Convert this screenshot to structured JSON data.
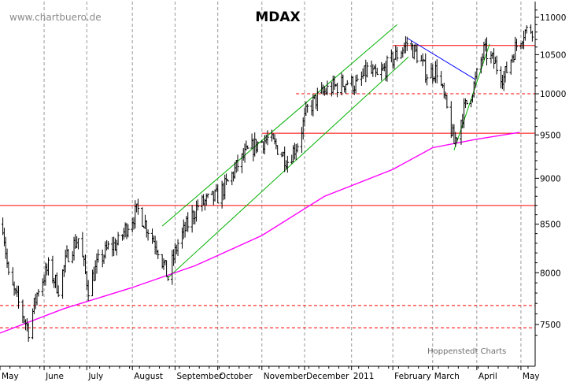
{
  "chart_data": {
    "type": "ohlc",
    "title": "MDAX",
    "watermark": "www.chartbuero.de",
    "source": "Hoppenstedt Charts",
    "y_scale": "log",
    "y_axis_side": "right",
    "ylim": [
      7350,
      11200
    ],
    "y_ticks": [
      7500,
      8000,
      8500,
      9000,
      9500,
      10000,
      10500,
      11000
    ],
    "x_range": [
      "2010-05-01",
      "2011-05-12"
    ],
    "x_tick_labels": [
      {
        "label": "May",
        "date": "2010-05-01"
      },
      {
        "label": "June",
        "date": "2010-06-01"
      },
      {
        "label": "July",
        "date": "2010-07-01"
      },
      {
        "label": "August",
        "date": "2010-08-02"
      },
      {
        "label": "September",
        "date": "2010-09-01"
      },
      {
        "label": "October",
        "date": "2010-10-01"
      },
      {
        "label": "November",
        "date": "2010-11-01"
      },
      {
        "label": "December",
        "date": "2010-12-01"
      },
      {
        "label": "2011",
        "date": "2011-01-03"
      },
      {
        "label": "February",
        "date": "2011-02-01"
      },
      {
        "label": "March",
        "date": "2011-03-01"
      },
      {
        "label": "April",
        "date": "2011-04-01"
      },
      {
        "label": "May",
        "date": "2011-05-02"
      }
    ],
    "grid": {
      "vertical_dashed": true
    },
    "colors": {
      "price": "#000000",
      "moving_average": "#ff00ff",
      "horizontal_levels": "#ff0000",
      "channel": "#00b000",
      "downtrend": "#0000ff"
    },
    "close_path": [
      [
        "2010-05-03",
        8500
      ],
      [
        "2010-05-07",
        7950
      ],
      [
        "2010-05-14",
        7700
      ],
      [
        "2010-05-21",
        7450
      ],
      [
        "2010-05-28",
        7850
      ],
      [
        "2010-06-04",
        8050
      ],
      [
        "2010-06-11",
        7850
      ],
      [
        "2010-06-18",
        8200
      ],
      [
        "2010-06-25",
        8350
      ],
      [
        "2010-07-02",
        7850
      ],
      [
        "2010-07-09",
        8100
      ],
      [
        "2010-07-16",
        8250
      ],
      [
        "2010-07-23",
        8300
      ],
      [
        "2010-07-30",
        8500
      ],
      [
        "2010-08-06",
        8650
      ],
      [
        "2010-08-13",
        8450
      ],
      [
        "2010-08-20",
        8250
      ],
      [
        "2010-08-27",
        7950
      ],
      [
        "2010-09-03",
        8300
      ],
      [
        "2010-09-10",
        8500
      ],
      [
        "2010-09-17",
        8700
      ],
      [
        "2010-09-24",
        8750
      ],
      [
        "2010-10-01",
        8800
      ],
      [
        "2010-10-08",
        8950
      ],
      [
        "2010-10-15",
        9150
      ],
      [
        "2010-10-22",
        9300
      ],
      [
        "2010-10-29",
        9400
      ],
      [
        "2010-11-05",
        9450
      ],
      [
        "2010-11-12",
        9350
      ],
      [
        "2010-11-19",
        9200
      ],
      [
        "2010-11-26",
        9400
      ],
      [
        "2010-12-03",
        9800
      ],
      [
        "2010-12-10",
        9950
      ],
      [
        "2010-12-17",
        10050
      ],
      [
        "2010-12-24",
        10100
      ],
      [
        "2010-12-31",
        10150
      ],
      [
        "2011-01-07",
        10100
      ],
      [
        "2011-01-14",
        10300
      ],
      [
        "2011-01-21",
        10200
      ],
      [
        "2011-01-28",
        10350
      ],
      [
        "2011-02-04",
        10500
      ],
      [
        "2011-02-11",
        10650
      ],
      [
        "2011-02-18",
        10500
      ],
      [
        "2011-02-25",
        10250
      ],
      [
        "2011-03-04",
        10300
      ],
      [
        "2011-03-11",
        9800
      ],
      [
        "2011-03-16",
        9400
      ],
      [
        "2011-03-23",
        9800
      ],
      [
        "2011-03-30",
        10100
      ],
      [
        "2011-04-06",
        10550
      ],
      [
        "2011-04-13",
        10400
      ],
      [
        "2011-04-20",
        10200
      ],
      [
        "2011-04-27",
        10550
      ],
      [
        "2011-05-04",
        10800
      ],
      [
        "2011-05-10",
        10850
      ]
    ],
    "moving_average": [
      [
        "2010-05-01",
        7420
      ],
      [
        "2010-06-15",
        7650
      ],
      [
        "2010-08-01",
        7850
      ],
      [
        "2010-09-15",
        8070
      ],
      [
        "2010-11-01",
        8380
      ],
      [
        "2010-12-15",
        8800
      ],
      [
        "2011-02-01",
        9100
      ],
      [
        "2011-03-01",
        9350
      ],
      [
        "2011-04-01",
        9450
      ],
      [
        "2011-05-01",
        9530
      ]
    ],
    "horizontal_levels": [
      {
        "value": 10620,
        "style": "solid",
        "from": "2011-02-01",
        "to": "2011-05-12"
      },
      {
        "value": 9520,
        "style": "solid",
        "from": "2010-11-01",
        "to": "2011-05-12"
      },
      {
        "value": 10000,
        "style": "dashed",
        "from": "2010-11-25",
        "to": "2011-05-12"
      },
      {
        "value": 8700,
        "style": "solid",
        "from": "2010-05-01",
        "to": "2011-05-12"
      },
      {
        "value": 7680,
        "style": "dashed",
        "from": "2010-05-01",
        "to": "2011-05-12"
      },
      {
        "value": 7470,
        "style": "dashed",
        "from": "2010-05-01",
        "to": "2011-05-12"
      }
    ],
    "trend_lines": [
      {
        "kind": "channel",
        "from": [
          "2010-08-23",
          8480
        ],
        "to": [
          "2011-02-04",
          10900
        ]
      },
      {
        "kind": "channel",
        "from": [
          "2010-08-27",
          7950
        ],
        "to": [
          "2011-02-12",
          10470
        ]
      },
      {
        "kind": "channel",
        "from": [
          "2011-03-16",
          9320
        ],
        "to": [
          "2011-04-10",
          10640
        ]
      },
      {
        "kind": "downtrend",
        "from": [
          "2011-02-11",
          10720
        ],
        "to": [
          "2011-03-31",
          10180
        ]
      }
    ]
  }
}
